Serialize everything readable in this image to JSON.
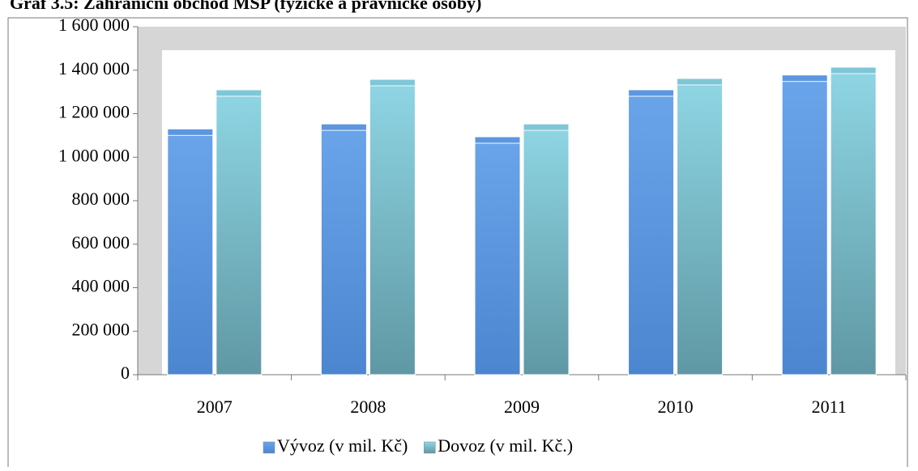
{
  "chart_data": {
    "type": "bar",
    "title": "Graf 3.5: Zahraniční obchod MSP (fyzické a právnické osoby)",
    "categories": [
      "2007",
      "2008",
      "2009",
      "2010",
      "2011"
    ],
    "series": [
      {
        "name": "Vývoz (v mil. Kč)",
        "color": "#5b96e0",
        "values": [
          1130000,
          1153000,
          1094000,
          1310000,
          1378000
        ]
      },
      {
        "name": "Dovoz (v mil. Kč.)",
        "color": "#7ec6d6",
        "values": [
          1310000,
          1358000,
          1153000,
          1362000,
          1414000
        ]
      }
    ],
    "ylim": [
      0,
      1600000
    ],
    "yticks": [
      0,
      {
        "value": 200000,
        "label": "200 000"
      },
      {
        "value": 400000,
        "label": "400 000"
      },
      {
        "value": 600000,
        "label": "600 000"
      },
      {
        "value": 800000,
        "label": "800 000"
      },
      {
        "value": 1000000,
        "label": "1 000 000"
      },
      {
        "value": 1200000,
        "label": "1 200 000"
      },
      {
        "value": 1400000,
        "label": "1 400 000"
      },
      {
        "value": 1600000,
        "label": "1 600 000"
      }
    ],
    "legend": "bottom"
  }
}
